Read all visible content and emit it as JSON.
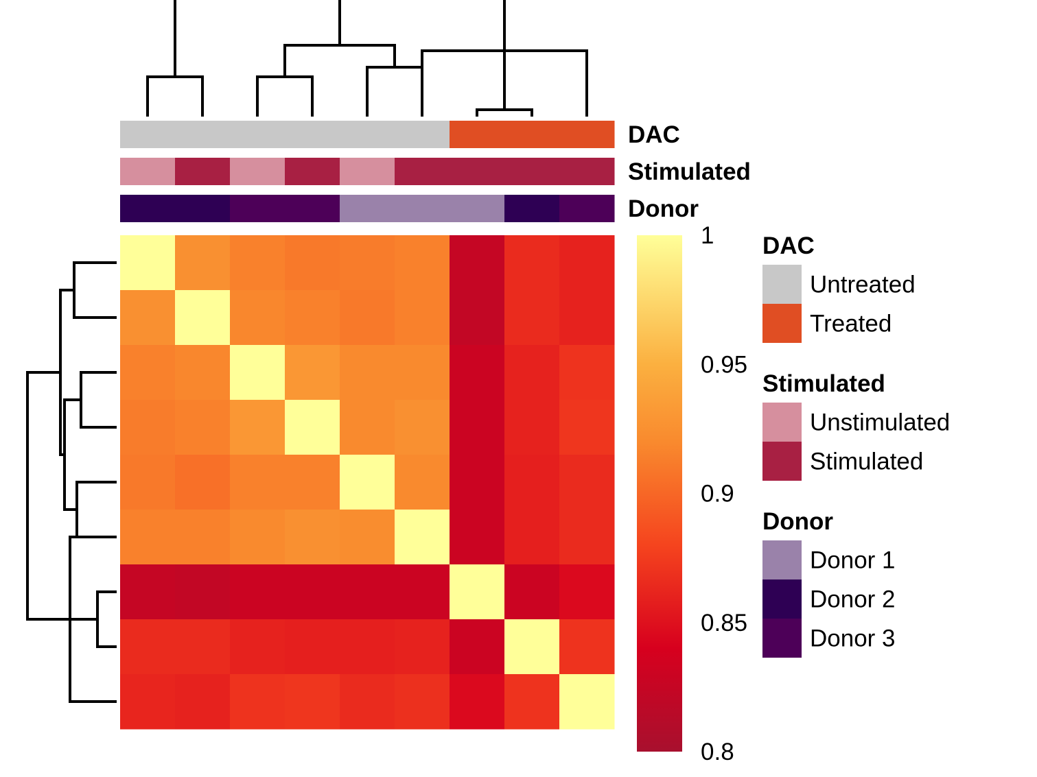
{
  "chart_data": {
    "type": "heatmap",
    "title": "",
    "n": 9,
    "values": [
      [
        1.0,
        0.925,
        0.915,
        0.91,
        0.912,
        0.915,
        0.825,
        0.865,
        0.86
      ],
      [
        0.925,
        1.0,
        0.918,
        0.915,
        0.91,
        0.915,
        0.822,
        0.865,
        0.86
      ],
      [
        0.915,
        0.918,
        1.0,
        0.93,
        0.92,
        0.92,
        0.83,
        0.86,
        0.87
      ],
      [
        0.912,
        0.915,
        0.93,
        1.0,
        0.92,
        0.925,
        0.83,
        0.86,
        0.872
      ],
      [
        0.91,
        0.905,
        0.915,
        0.915,
        1.0,
        0.92,
        0.83,
        0.858,
        0.865
      ],
      [
        0.915,
        0.915,
        0.92,
        0.925,
        0.922,
        1.0,
        0.83,
        0.858,
        0.865
      ],
      [
        0.825,
        0.822,
        0.83,
        0.83,
        0.83,
        0.83,
        1.0,
        0.83,
        0.845
      ],
      [
        0.865,
        0.865,
        0.86,
        0.858,
        0.858,
        0.86,
        0.83,
        1.0,
        0.87
      ],
      [
        0.862,
        0.86,
        0.87,
        0.872,
        0.865,
        0.868,
        0.845,
        0.87,
        1.0
      ]
    ],
    "color_scale": {
      "min": 0.8,
      "max": 1,
      "stops": [
        {
          "v": 0.8,
          "color": "#A8102E"
        },
        {
          "v": 0.84,
          "color": "#D7001E"
        },
        {
          "v": 0.88,
          "color": "#F5441E"
        },
        {
          "v": 0.92,
          "color": "#F98A2E"
        },
        {
          "v": 0.95,
          "color": "#FBB040"
        },
        {
          "v": 1.0,
          "color": "#FFFF99"
        }
      ],
      "ticks": [
        "1",
        "0.95",
        "0.9",
        "0.85",
        "0.8"
      ],
      "tick_values": [
        1,
        0.95,
        0.9,
        0.85,
        0.8
      ]
    },
    "annotations": [
      {
        "name": "DAC",
        "values": [
          "Untreated",
          "Untreated",
          "Untreated",
          "Untreated",
          "Untreated",
          "Untreated",
          "Treated",
          "Treated",
          "Treated"
        ]
      },
      {
        "name": "Stimulated",
        "values": [
          "Unstimulated",
          "Stimulated",
          "Unstimulated",
          "Stimulated",
          "Unstimulated",
          "Stimulated",
          "Stimulated",
          "Stimulated",
          "Stimulated"
        ]
      },
      {
        "name": "Donor",
        "values": [
          "Donor 2",
          "Donor 2",
          "Donor 3",
          "Donor 3",
          "Donor 1",
          "Donor 1",
          "Donor 1",
          "Donor 2",
          "Donor 3"
        ]
      }
    ],
    "legend": [
      {
        "title": "DAC",
        "items": [
          {
            "label": "Untreated",
            "color": "#C8C8C8"
          },
          {
            "label": "Treated",
            "color": "#E04E23"
          }
        ]
      },
      {
        "title": "Stimulated",
        "items": [
          {
            "label": "Unstimulated",
            "color": "#D68F9E"
          },
          {
            "label": "Stimulated",
            "color": "#A82043"
          }
        ]
      },
      {
        "title": "Donor",
        "items": [
          {
            "label": "Donor 1",
            "color": "#9A82AA"
          },
          {
            "label": "Donor 2",
            "color": "#2E0054"
          },
          {
            "label": "Donor 3",
            "color": "#4D0058"
          }
        ]
      }
    ],
    "dendrogram": {
      "merges": [
        [
          -7,
          -8
        ],
        [
          -1,
          -2
        ],
        [
          -3,
          -4
        ],
        [
          -5,
          -6
        ],
        [
          3,
          4
        ],
        [
          -6,
          -9
        ],
        [
          2,
          5
        ],
        [
          1,
          6
        ],
        [
          7,
          8
        ]
      ]
    }
  }
}
